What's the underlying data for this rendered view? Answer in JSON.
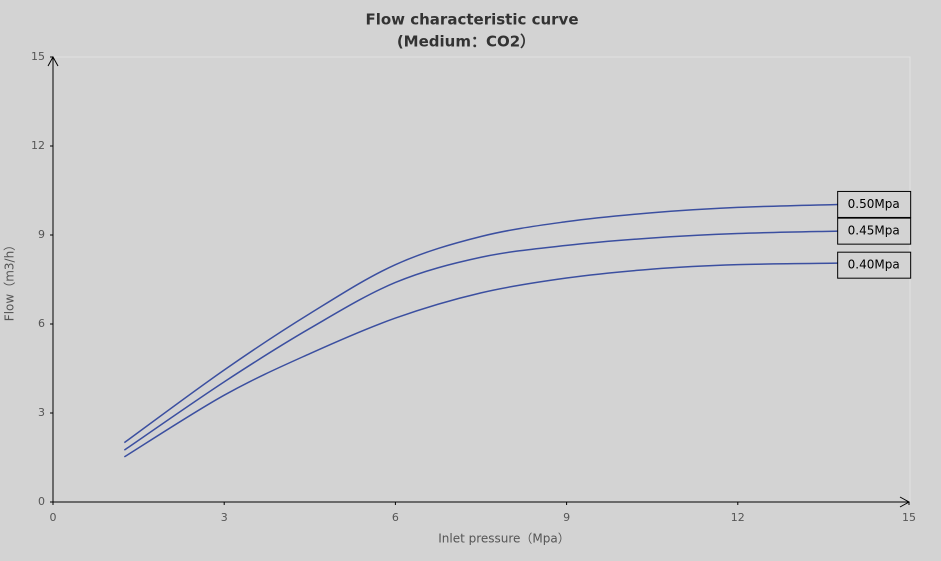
{
  "chart_data": {
    "type": "line",
    "title": "Flow characteristic curve",
    "subtitle": "(Medium：CO2）",
    "x_label": "Inlet pressure（Mpa）",
    "y_label": "Flow（m3/h）",
    "x": [
      1.25,
      3,
      4.5,
      6,
      7.5,
      9,
      10.5,
      12,
      13.75
    ],
    "series": [
      {
        "name": "0.50Mpa",
        "color": "#3b4fa0",
        "values": [
          2.0,
          4.45,
          6.35,
          8.0,
          8.95,
          9.45,
          9.75,
          9.93,
          10.03
        ]
      },
      {
        "name": "0.45Mpa",
        "color": "#3b4fa0",
        "values": [
          1.75,
          4.05,
          5.85,
          7.4,
          8.25,
          8.65,
          8.9,
          9.05,
          9.13
        ]
      },
      {
        "name": "0.40Mpa",
        "color": "#3b4fa0",
        "values": [
          1.52,
          3.6,
          5.0,
          6.2,
          7.05,
          7.55,
          7.85,
          8.0,
          8.05
        ]
      }
    ],
    "xlim": [
      0,
      15
    ],
    "xticks": [
      0,
      3,
      6,
      9,
      12,
      15
    ],
    "ylim": [
      0,
      15
    ],
    "yticks": [
      0,
      3,
      6,
      9,
      12,
      15
    ],
    "grid": false
  }
}
